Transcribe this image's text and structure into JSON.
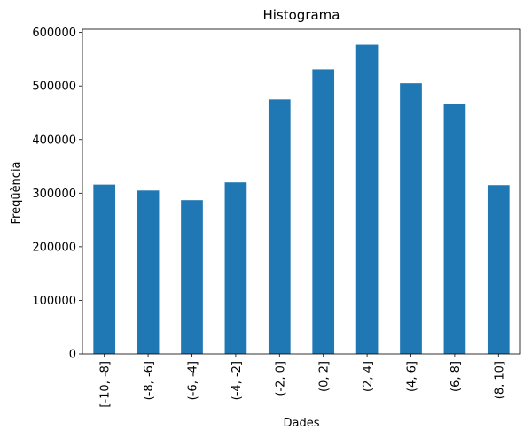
{
  "chart_data": {
    "type": "bar",
    "title": "Histograma",
    "xlabel": "Dades",
    "ylabel": "Freqüència",
    "categories": [
      "[-10, -8]",
      "(-8, -6]",
      "(-6, -4]",
      "(-4, -2]",
      "(-2, 0]",
      "(0, 2]",
      "(2, 4]",
      "(4, 6]",
      "(6, 8]",
      "(8, 10]"
    ],
    "values": [
      316000,
      305000,
      287000,
      320000,
      475000,
      531000,
      577000,
      505000,
      467000,
      315000
    ],
    "ylim": [
      0,
      606000
    ],
    "yticks": [
      0,
      100000,
      200000,
      300000,
      400000,
      500000,
      600000
    ],
    "ytick_labels": [
      "0",
      "100000",
      "200000",
      "300000",
      "400000",
      "500000",
      "600000"
    ],
    "bar_color": "#1f77b4",
    "grid": false,
    "legend": "none"
  }
}
